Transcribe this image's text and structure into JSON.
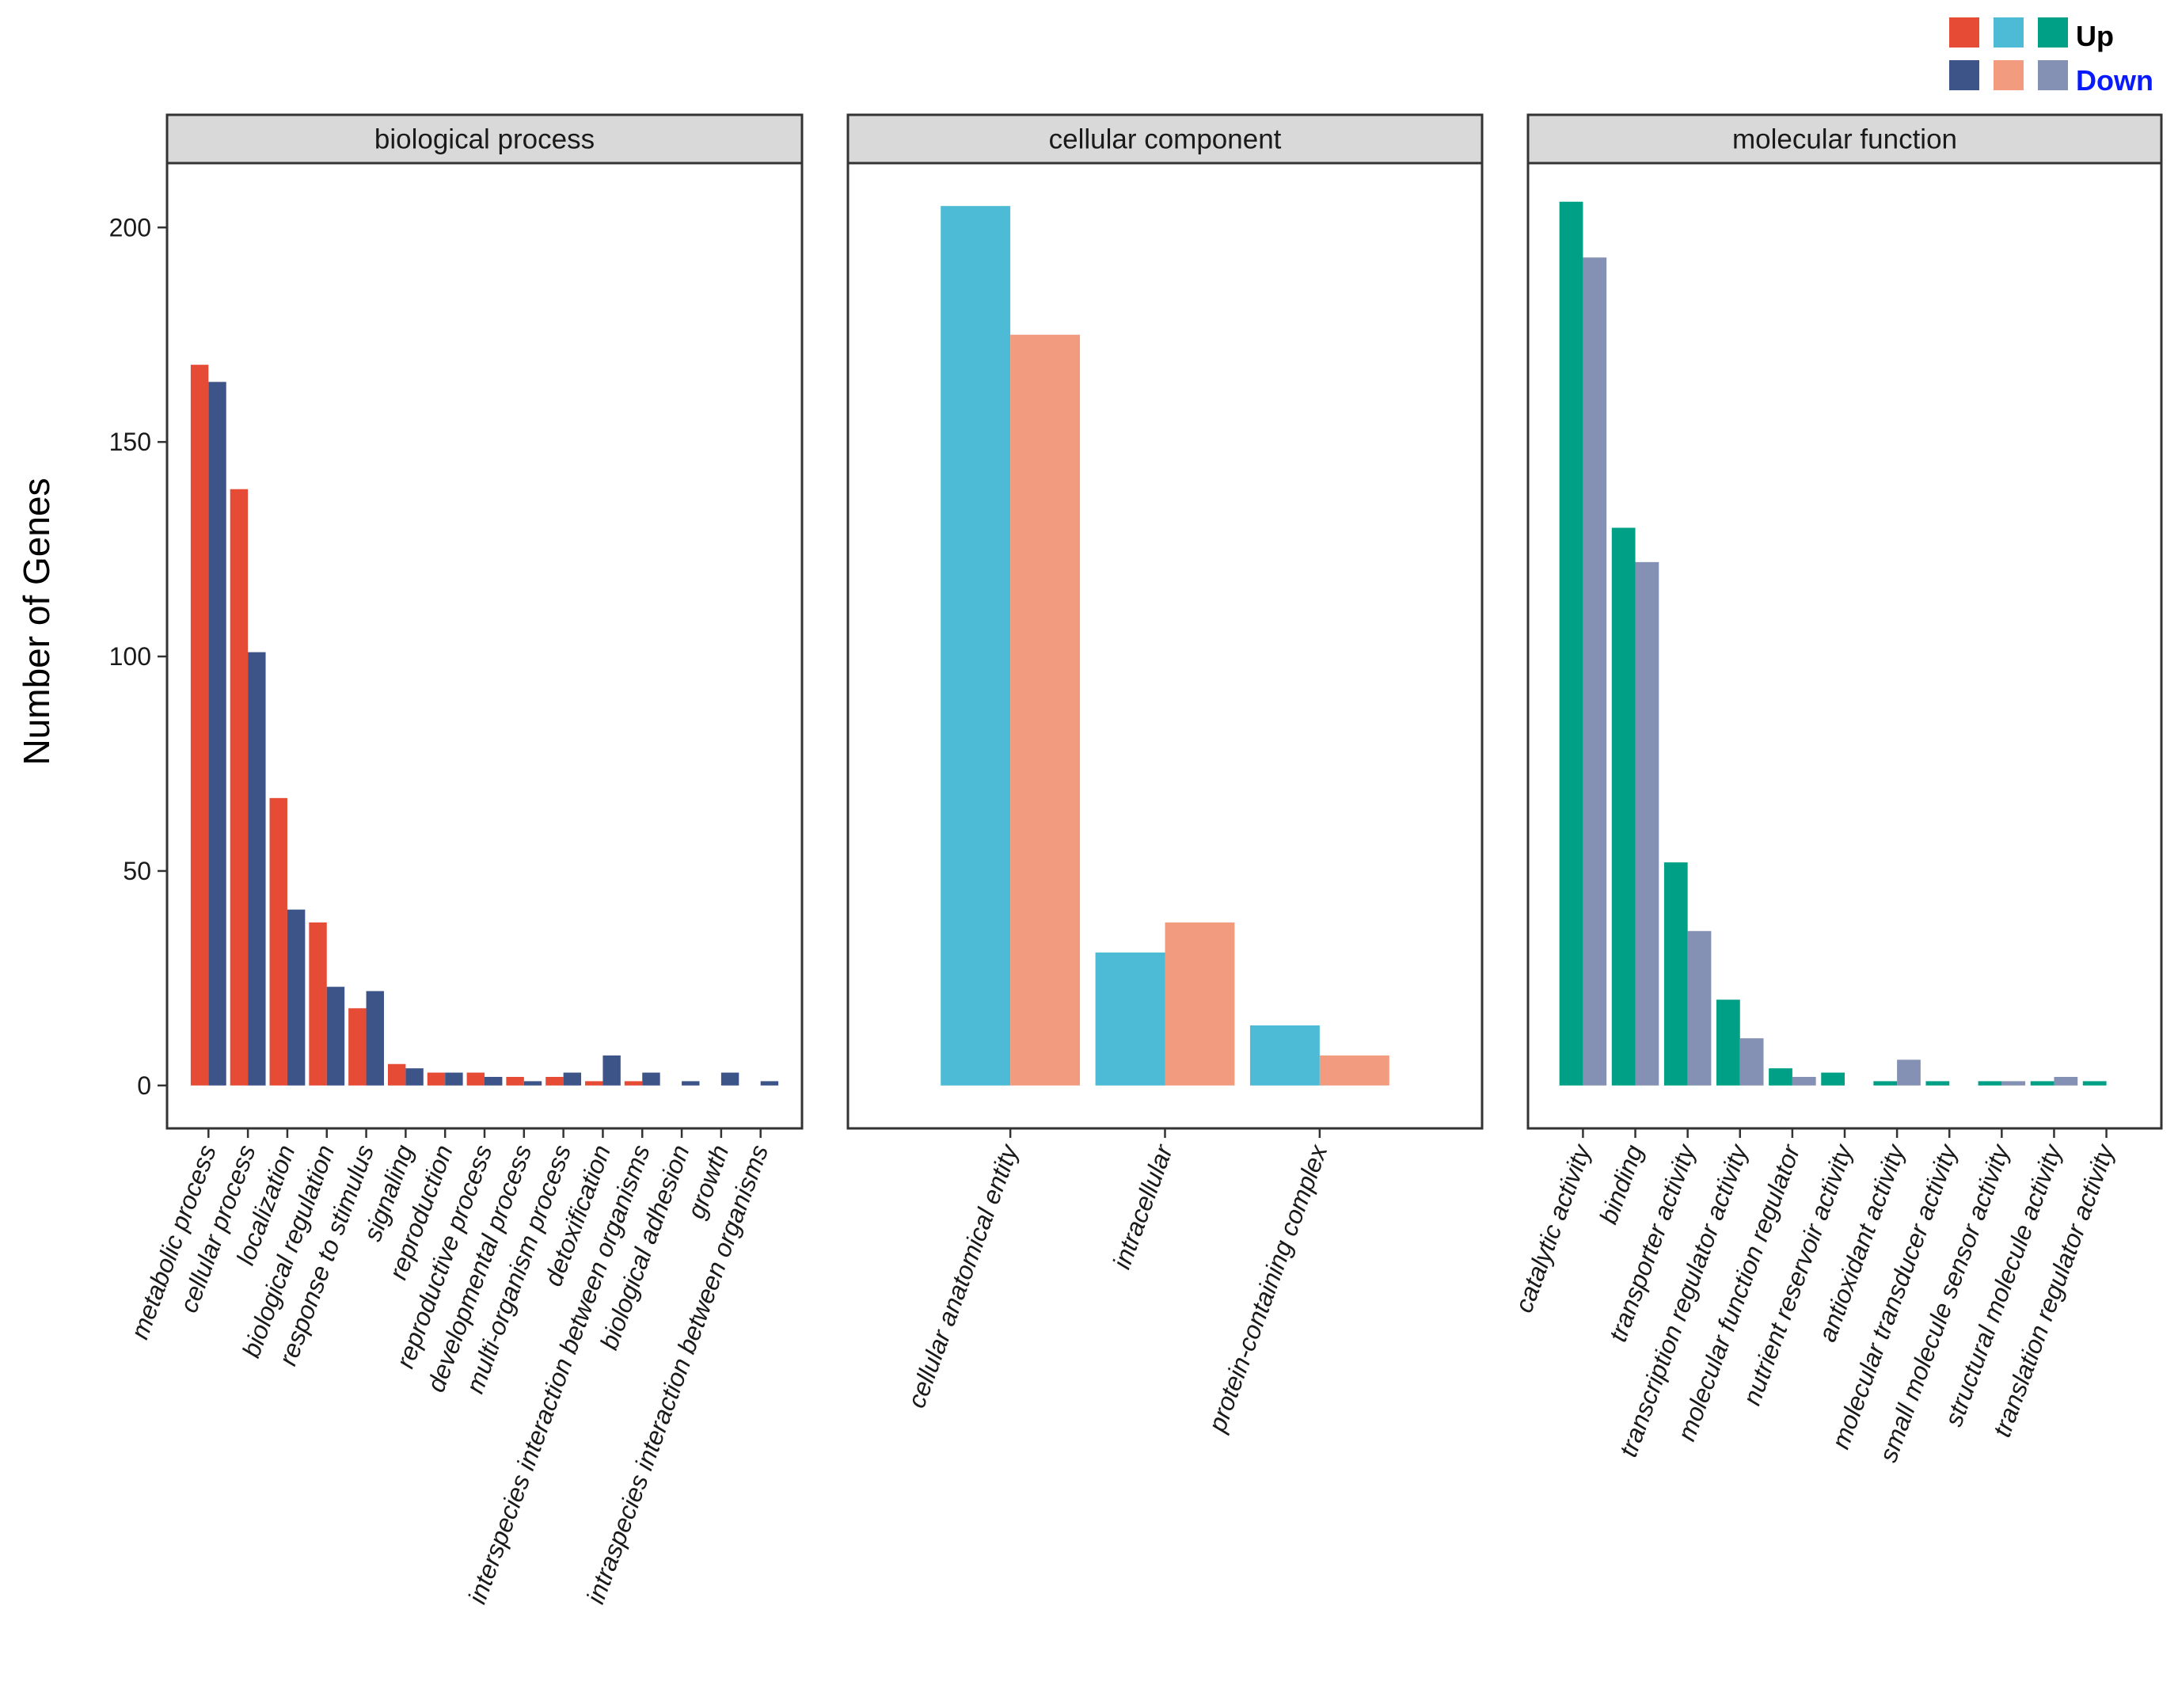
{
  "chart_data": {
    "type": "bar",
    "ylabel": "Number of Genes",
    "ylim": [
      -10,
      215
    ],
    "yticks": [
      0,
      50,
      100,
      150,
      200
    ],
    "legend": {
      "position": "top-right",
      "up_label": "Up",
      "down_label": "Down",
      "up_colors": [
        "#E64B35",
        "#4DBBD5",
        "#00A087"
      ],
      "down_colors": [
        "#3C5488",
        "#F39B7F",
        "#8491B4"
      ]
    },
    "panels": [
      {
        "title": "biological process",
        "up_color": "#E64B35",
        "down_color": "#3C5488",
        "categories": [
          "metabolic process",
          "cellular process",
          "localization",
          "biological regulation",
          "response to stimulus",
          "signaling",
          "reproduction",
          "reproductive process",
          "developmental process",
          "multi-organism process",
          "detoxification",
          "interspecies interaction between organisms",
          "biological adhesion",
          "growth",
          "intraspecies interaction between organisms"
        ],
        "series": [
          {
            "name": "Up",
            "values": [
              168,
              139,
              67,
              38,
              18,
              5,
              3,
              3,
              2,
              2,
              1,
              1,
              0,
              0,
              0
            ]
          },
          {
            "name": "Down",
            "values": [
              164,
              101,
              41,
              23,
              22,
              4,
              3,
              2,
              1,
              3,
              7,
              3,
              1,
              3,
              1
            ]
          }
        ]
      },
      {
        "title": "cellular component",
        "up_color": "#4DBBD5",
        "down_color": "#F39B7F",
        "categories": [
          "cellular anatomical entity",
          "intracellular",
          "protein-containing complex"
        ],
        "series": [
          {
            "name": "Up",
            "values": [
              205,
              31,
              14
            ]
          },
          {
            "name": "Down",
            "values": [
              175,
              38,
              7
            ]
          }
        ]
      },
      {
        "title": "molecular function",
        "up_color": "#00A087",
        "down_color": "#8491B4",
        "categories": [
          "catalytic activity",
          "binding",
          "transporter activity",
          "transcription regulator activity",
          "molecular function regulator",
          "nutrient reservoir activity",
          "antioxidant activity",
          "molecular transducer activity",
          "small molecule sensor activity",
          "structural molecule activity",
          "translation regulator activity"
        ],
        "series": [
          {
            "name": "Up",
            "values": [
              206,
              130,
              52,
              20,
              4,
              3,
              1,
              1,
              1,
              1,
              1
            ]
          },
          {
            "name": "Down",
            "values": [
              193,
              122,
              36,
              11,
              2,
              0,
              6,
              0,
              1,
              2,
              0
            ]
          }
        ]
      }
    ]
  }
}
